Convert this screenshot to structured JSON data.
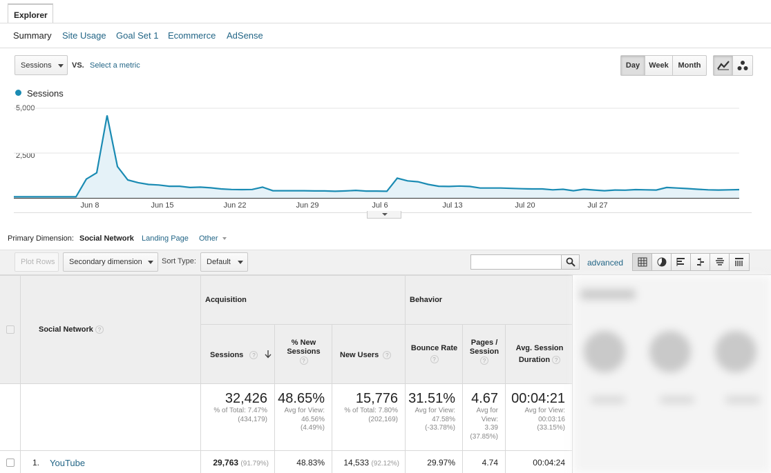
{
  "explorer_tab": "Explorer",
  "subtabs": [
    "Summary",
    "Site Usage",
    "Goal Set 1",
    "Ecommerce",
    "AdSense"
  ],
  "metric_select": "Sessions",
  "vs_label": "VS.",
  "select_metric": "Select a metric",
  "period_buttons": [
    "Day",
    "Week",
    "Month"
  ],
  "active_period": "Day",
  "chart_data": {
    "type": "area",
    "series": [
      {
        "name": "Sessions",
        "color": "#1a8bb3",
        "values": [
          60,
          60,
          60,
          60,
          60,
          60,
          60,
          1050,
          1400,
          4600,
          1750,
          1000,
          850,
          750,
          720,
          650,
          650,
          580,
          600,
          560,
          500,
          470,
          460,
          470,
          600,
          400,
          400,
          400,
          400,
          390,
          390,
          370,
          390,
          420,
          380,
          380,
          370,
          1100,
          950,
          900,
          750,
          650,
          640,
          660,
          640,
          550,
          550,
          550,
          530,
          510,
          500,
          500,
          450,
          480,
          400,
          480,
          440,
          400,
          440,
          430,
          460,
          450,
          440,
          580,
          550,
          520,
          480,
          450,
          440,
          450,
          460
        ]
      }
    ],
    "x_tick_labels": [
      "Jun 8",
      "Jun 15",
      "Jun 22",
      "Jun 29",
      "Jul 6",
      "Jul 13",
      "Jul 20",
      "Jul 27"
    ],
    "y_tick_labels": [
      "5,000",
      "2,500"
    ],
    "ylim": [
      0,
      5000
    ],
    "grid": true,
    "legend_position": "top-left"
  },
  "primary_dimension": {
    "label": "Primary Dimension:",
    "active": "Social Network",
    "landing_page": "Landing Page",
    "other": "Other"
  },
  "toolbar": {
    "plot_rows": "Plot Rows",
    "secondary_dimension": "Secondary dimension",
    "sort_type_label": "Sort Type:",
    "sort_type_value": "Default",
    "search_value": "",
    "advanced": "advanced"
  },
  "table": {
    "dimension_header": "Social Network",
    "group_acquisition": "Acquisition",
    "group_behavior": "Behavior",
    "col_sessions": "Sessions",
    "col_new_sessions": "% New Sessions",
    "col_new_users": "New Users",
    "col_bounce": "Bounce Rate",
    "col_pages": "Pages / Session",
    "col_duration": "Avg. Session Duration",
    "totals": {
      "sessions": "32,426",
      "sessions_sub": [
        "% of Total: 7.47%",
        "(434,179)"
      ],
      "new_sessions": "48.65%",
      "new_sessions_sub": [
        "Avg for View:",
        "46.56%",
        "(4.49%)"
      ],
      "new_users": "15,776",
      "new_users_sub": [
        "% of Total: 7.80%",
        "(202,169)"
      ],
      "bounce": "31.51%",
      "bounce_sub": [
        "Avg for View:",
        "47.58%",
        "(-33.78%)"
      ],
      "pages": "4.67",
      "pages_sub": [
        "Avg for",
        "View:",
        "3.39",
        "(37.85%)"
      ],
      "duration": "00:04:21",
      "duration_sub": [
        "Avg for View:",
        "00:03:16",
        "(33.15%)"
      ]
    },
    "rows": [
      {
        "index": "1.",
        "name": "YouTube",
        "sessions": "29,763",
        "sessions_pct": "(91.79%)",
        "new_sessions": "48.83%",
        "new_users": "14,533",
        "new_users_pct": "(92.12%)",
        "bounce": "29.97%",
        "pages": "4.74",
        "duration": "00:04:24"
      }
    ]
  }
}
